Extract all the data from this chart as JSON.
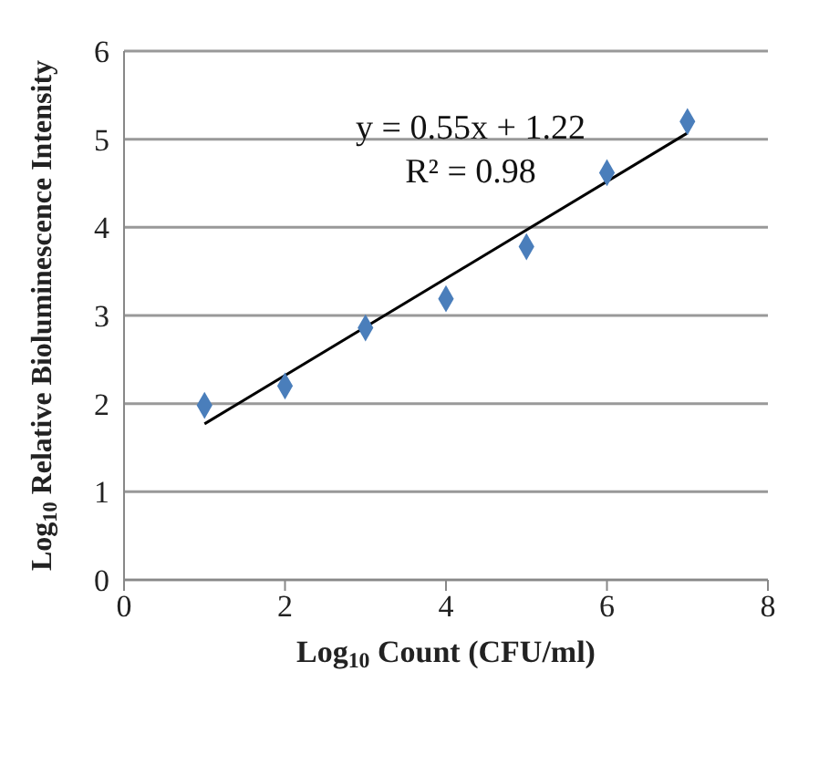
{
  "chart_data": {
    "type": "scatter",
    "xlabel": "Log$_{10}$ Count  (CFU/ml)",
    "ylabel": "Log$_{10}$ Relative Bioluminescence  Intensity",
    "x": [
      1,
      2,
      3,
      4,
      5,
      6,
      7
    ],
    "series": [
      {
        "color": "#4a7ebb",
        "marker": "diamond",
        "values": [
          1.98,
          2.2,
          2.86,
          3.19,
          3.78,
          4.62,
          5.2
        ]
      },
      {
        "type": "line",
        "color": "#000000",
        "marker": "none",
        "x": [
          1,
          7
        ],
        "values": [
          1.77,
          5.07
        ]
      }
    ],
    "annotations": [
      "y = 0.55x + 1.22",
      "R² = 0.98"
    ],
    "xlim": [
      0,
      8
    ],
    "xticks": [
      0,
      2,
      4,
      6,
      8
    ],
    "ylim": [
      0,
      6
    ],
    "yticks": [
      0,
      1,
      2,
      3,
      4,
      5,
      6
    ],
    "grid": "y",
    "legend": false
  }
}
